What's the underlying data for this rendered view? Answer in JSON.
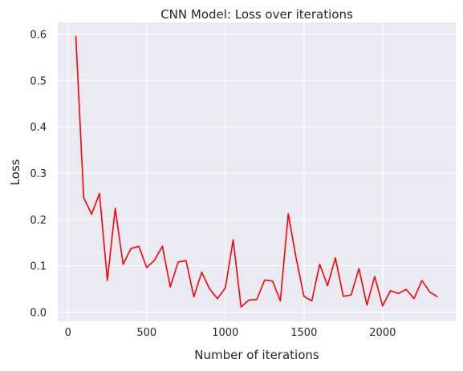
{
  "chart_data": {
    "type": "line",
    "title": "CNN Model: Loss over iterations",
    "xlabel": "Number of iterations",
    "ylabel": "Loss",
    "xlim": [
      -65,
      2465
    ],
    "ylim": [
      -0.02,
      0.625
    ],
    "xticks": [
      0,
      500,
      1000,
      1500,
      2000
    ],
    "xtick_labels": [
      "0",
      "500",
      "1000",
      "1500",
      "2000"
    ],
    "yticks": [
      0.0,
      0.1,
      0.2,
      0.3,
      0.4,
      0.5,
      0.6
    ],
    "ytick_labels": [
      "0.0",
      "0.1",
      "0.2",
      "0.3",
      "0.4",
      "0.5",
      "0.6"
    ],
    "grid": true,
    "background_color": "#eaeaf2",
    "series": [
      {
        "color": "#ff0000",
        "x": [
          50,
          100,
          150,
          200,
          250,
          300,
          350,
          400,
          450,
          500,
          550,
          600,
          650,
          700,
          750,
          800,
          850,
          900,
          950,
          1000,
          1050,
          1100,
          1150,
          1200,
          1250,
          1300,
          1350,
          1400,
          1450,
          1500,
          1550,
          1600,
          1650,
          1700,
          1750,
          1800,
          1850,
          1900,
          1950,
          2000,
          2050,
          2100,
          2150,
          2200,
          2250,
          2300,
          2350
        ],
        "y": [
          0.596,
          0.247,
          0.211,
          0.256,
          0.068,
          0.224,
          0.103,
          0.137,
          0.142,
          0.096,
          0.112,
          0.142,
          0.054,
          0.108,
          0.111,
          0.033,
          0.086,
          0.05,
          0.029,
          0.052,
          0.156,
          0.011,
          0.026,
          0.027,
          0.069,
          0.067,
          0.024,
          0.212,
          0.117,
          0.034,
          0.024,
          0.103,
          0.057,
          0.117,
          0.034,
          0.037,
          0.094,
          0.015,
          0.077,
          0.013,
          0.046,
          0.04,
          0.049,
          0.029,
          0.068,
          0.043,
          0.033
        ]
      }
    ]
  }
}
